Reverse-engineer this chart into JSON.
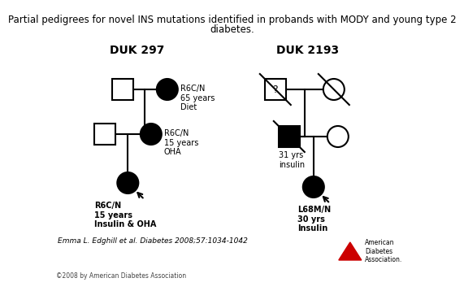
{
  "title_line1": "Partial pedigrees for novel INS mutations identified in probands with MODY and young type 2",
  "title_line2": "diabetes.",
  "title_fontsize": 8.5,
  "duk297_label": "DUK 297",
  "duk2193_label": "DUK 2193",
  "citation": "Emma L. Edghill et al. Diabetes 2008;57:1034-1042",
  "copyright": "©2008 by American Diabetes Association",
  "background_color": "#ffffff",
  "line_color": "#000000",
  "fill_affected": "#000000",
  "fill_unaffected": "#ffffff",
  "label_fontsize": 7.0,
  "label_fontsize_bold": 8.0,
  "sz": 13
}
